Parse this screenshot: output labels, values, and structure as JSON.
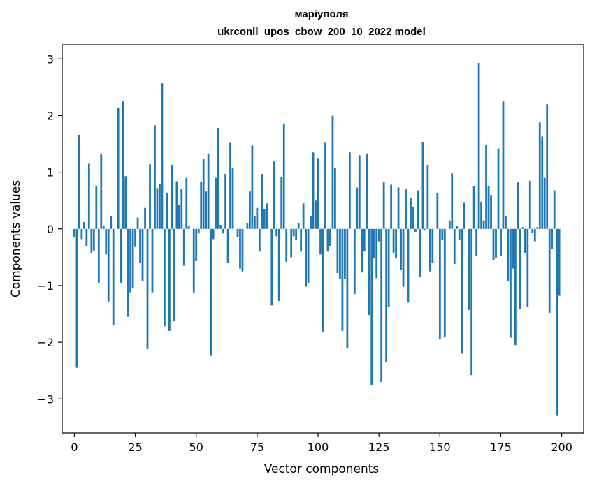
{
  "chart_data": {
    "type": "bar",
    "title": "маріуполя",
    "subtitle": "ukrconll_upos_cbow_200_10_2022 model",
    "xlabel": "Vector components",
    "ylabel": "Components values",
    "xlim": [
      -5,
      209
    ],
    "ylim": [
      -3.6,
      3.25
    ],
    "xticks": [
      0,
      25,
      50,
      75,
      100,
      125,
      150,
      175,
      200
    ],
    "yticks": [
      -3,
      -2,
      -1,
      0,
      1,
      2,
      3
    ],
    "xtick_labels": [
      "0",
      "25",
      "50",
      "75",
      "100",
      "125",
      "150",
      "175",
      "200"
    ],
    "ytick_labels": [
      "−3",
      "−2",
      "−1",
      "0",
      "1",
      "2",
      "3"
    ],
    "grid": false,
    "bar_color": "#1f77b4",
    "x": [
      0,
      1,
      2,
      3,
      4,
      5,
      6,
      7,
      8,
      9,
      10,
      11,
      12,
      13,
      14,
      15,
      16,
      17,
      18,
      19,
      20,
      21,
      22,
      23,
      24,
      25,
      26,
      27,
      28,
      29,
      30,
      31,
      32,
      33,
      34,
      35,
      36,
      37,
      38,
      39,
      40,
      41,
      42,
      43,
      44,
      45,
      46,
      47,
      48,
      49,
      50,
      51,
      52,
      53,
      54,
      55,
      56,
      57,
      58,
      59,
      60,
      61,
      62,
      63,
      64,
      65,
      66,
      67,
      68,
      69,
      70,
      71,
      72,
      73,
      74,
      75,
      76,
      77,
      78,
      79,
      80,
      81,
      82,
      83,
      84,
      85,
      86,
      87,
      88,
      89,
      90,
      91,
      92,
      93,
      94,
      95,
      96,
      97,
      98,
      99,
      100,
      101,
      102,
      103,
      104,
      105,
      106,
      107,
      108,
      109,
      110,
      111,
      112,
      113,
      114,
      115,
      116,
      117,
      118,
      119,
      120,
      121,
      122,
      123,
      124,
      125,
      126,
      127,
      128,
      129,
      130,
      131,
      132,
      133,
      134,
      135,
      136,
      137,
      138,
      139,
      140,
      141,
      142,
      143,
      144,
      145,
      146,
      147,
      148,
      149,
      150,
      151,
      152,
      153,
      154,
      155,
      156,
      157,
      158,
      159,
      160,
      161,
      162,
      163,
      164,
      165,
      166,
      167,
      168,
      169,
      170,
      171,
      172,
      173,
      174,
      175,
      176,
      177,
      178,
      179,
      180,
      181,
      182,
      183,
      184,
      185,
      186,
      187,
      188,
      189,
      190,
      191,
      192,
      193,
      194,
      195,
      196,
      197,
      198,
      199
    ],
    "values": [
      -0.15,
      -2.45,
      1.65,
      -0.18,
      0.12,
      -0.3,
      1.15,
      -0.42,
      -0.38,
      0.75,
      -0.95,
      1.33,
      0.05,
      -0.45,
      -1.28,
      0.22,
      -1.7,
      0.0,
      2.13,
      -0.95,
      2.25,
      0.93,
      -1.55,
      -1.12,
      -1.05,
      -0.32,
      0.2,
      -0.6,
      -0.92,
      0.37,
      -2.12,
      1.14,
      -1.12,
      1.83,
      0.72,
      0.8,
      2.57,
      -1.72,
      0.64,
      -1.8,
      1.12,
      -1.63,
      0.84,
      0.42,
      0.71,
      -0.65,
      0.9,
      0.06,
      0.0,
      -1.12,
      -0.57,
      -0.08,
      0.83,
      1.23,
      0.66,
      1.33,
      -2.24,
      -0.18,
      0.9,
      1.78,
      0.07,
      -0.08,
      0.97,
      -0.6,
      1.52,
      1.08,
      0.0,
      -0.15,
      -0.7,
      -0.75,
      0.0,
      0.1,
      0.66,
      1.47,
      0.22,
      0.37,
      -0.4,
      0.97,
      0.35,
      0.45,
      0.0,
      -1.35,
      1.19,
      -0.13,
      -1.27,
      0.92,
      1.86,
      -0.58,
      0.0,
      -0.5,
      -0.13,
      -0.2,
      0.1,
      -0.4,
      0.45,
      -1.02,
      -0.95,
      0.22,
      1.35,
      0.5,
      1.25,
      -0.45,
      -1.82,
      1.52,
      -0.4,
      -0.3,
      2.0,
      1.07,
      -0.78,
      -0.88,
      -1.8,
      -0.88,
      -2.1,
      1.35,
      0.0,
      -1.15,
      0.73,
      1.3,
      -0.77,
      -0.4,
      1.33,
      -1.52,
      -2.75,
      -0.52,
      -0.87,
      -0.22,
      -2.7,
      0.82,
      -2.35,
      -1.37,
      0.78,
      -0.42,
      -0.52,
      0.73,
      -0.72,
      -1.02,
      0.7,
      -1.3,
      0.55,
      0.38,
      -0.05,
      0.68,
      -0.85,
      1.53,
      -0.02,
      1.12,
      -0.75,
      -0.6,
      0.0,
      0.63,
      -1.95,
      -0.2,
      -1.9,
      0.0,
      0.15,
      0.98,
      -0.62,
      0.05,
      -0.2,
      -2.2,
      0.46,
      0.0,
      -1.43,
      -2.58,
      0.75,
      -0.48,
      2.93,
      0.48,
      0.15,
      1.48,
      0.75,
      0.6,
      -0.55,
      -0.52,
      1.42,
      -0.47,
      2.25,
      0.22,
      -0.92,
      -1.92,
      -0.7,
      -2.05,
      0.82,
      -1.41,
      0.03,
      -0.42,
      -1.38,
      0.85,
      -0.07,
      -0.22,
      0.03,
      1.88,
      1.63,
      0.9,
      2.2,
      -1.48,
      -0.35,
      0.68,
      -3.3,
      -1.18
    ]
  }
}
